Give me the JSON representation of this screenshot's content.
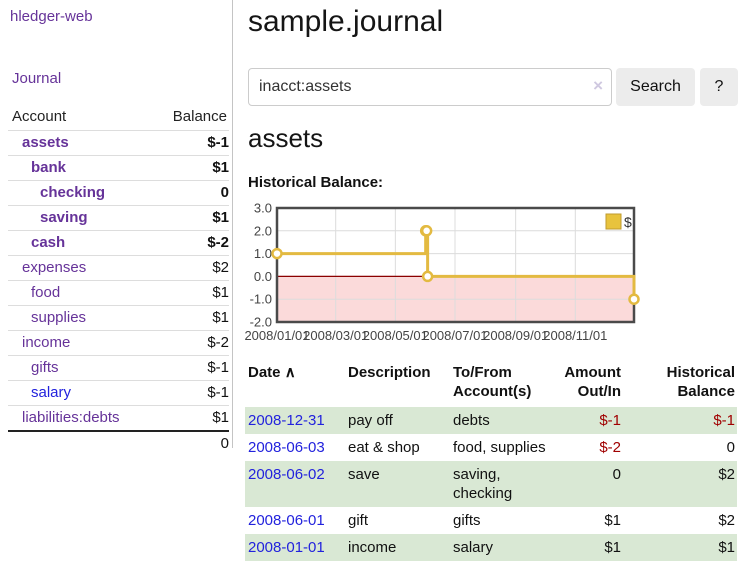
{
  "sidebar": {
    "app_title": "hledger-web",
    "nav": {
      "journal_label": "Journal"
    },
    "accounts_table": {
      "headers": {
        "account": "Account",
        "balance": "Balance"
      },
      "rows": [
        {
          "name": "assets",
          "indent": 1,
          "bold": true,
          "link_color": "purple",
          "balance": "$-1",
          "balance_color": "negative"
        },
        {
          "name": "bank",
          "indent": 2,
          "bold": true,
          "link_color": "purple",
          "balance": "$1",
          "balance_color": "normal"
        },
        {
          "name": "checking",
          "indent": 3,
          "bold": true,
          "link_color": "purple",
          "balance": "0",
          "balance_color": "normal"
        },
        {
          "name": "saving",
          "indent": 3,
          "bold": true,
          "link_color": "purple",
          "balance": "$1",
          "balance_color": "normal"
        },
        {
          "name": "cash",
          "indent": 2,
          "bold": true,
          "link_color": "purple",
          "balance": "$-2",
          "balance_color": "negative"
        },
        {
          "name": "expenses",
          "indent": 1,
          "bold": false,
          "link_color": "purple",
          "balance": "$2",
          "balance_color": "normal"
        },
        {
          "name": "food",
          "indent": 2,
          "bold": false,
          "link_color": "purple",
          "balance": "$1",
          "balance_color": "normal"
        },
        {
          "name": "supplies",
          "indent": 2,
          "bold": false,
          "link_color": "purple",
          "balance": "$1",
          "balance_color": "normal"
        },
        {
          "name": "income",
          "indent": 1,
          "bold": false,
          "link_color": "purple",
          "balance": "$-2",
          "balance_color": "negative-light"
        },
        {
          "name": "gifts",
          "indent": 2,
          "bold": false,
          "link_color": "purple",
          "balance": "$-1",
          "balance_color": "negative-light"
        },
        {
          "name": "salary",
          "indent": 2,
          "bold": false,
          "link_color": "blue",
          "balance": "$-1",
          "balance_color": "negative-light"
        },
        {
          "name": "liabilities:debts",
          "indent": 1,
          "bold": false,
          "link_color": "purple",
          "balance": "$1",
          "balance_color": "normal"
        }
      ],
      "total": "0"
    }
  },
  "main": {
    "title": "sample.journal",
    "search": {
      "value": "inacct:assets",
      "clear_icon": "×",
      "button_label": "Search",
      "help_label": "?"
    },
    "account_heading": "assets",
    "chart_heading": "Historical Balance:",
    "register": {
      "headers": [
        "Date",
        "Description",
        "To/From Account(s)",
        "Amount Out/In",
        "Historical Balance"
      ],
      "sort_indicator": "∧",
      "rows": [
        {
          "date": "2008-12-31",
          "description": "pay off",
          "accounts": "debts",
          "amount": "$-1",
          "amount_color": "negative",
          "balance": "$-1",
          "balance_color": "negative",
          "shaded": true
        },
        {
          "date": "2008-06-03",
          "description": "eat & shop",
          "accounts": "food, supplies",
          "amount": "$-2",
          "amount_color": "negative",
          "balance": "0",
          "balance_color": "normal",
          "shaded": false
        },
        {
          "date": "2008-06-02",
          "description": "save",
          "accounts": "saving, checking",
          "amount": "0",
          "amount_color": "normal",
          "balance": "$2",
          "balance_color": "normal",
          "shaded": true
        },
        {
          "date": "2008-06-01",
          "description": "gift",
          "accounts": "gifts",
          "amount": "$1",
          "amount_color": "normal",
          "balance": "$2",
          "balance_color": "normal",
          "shaded": false
        },
        {
          "date": "2008-01-01",
          "description": "income",
          "accounts": "salary",
          "amount": "$1",
          "amount_color": "normal",
          "balance": "$1",
          "balance_color": "normal",
          "shaded": true
        }
      ]
    }
  },
  "chart_data": {
    "type": "line",
    "title": "Historical Balance",
    "step": true,
    "grid": true,
    "legend_position": "top-right",
    "legend": [
      {
        "label": "$",
        "color": "#e8c33d"
      }
    ],
    "ylim": [
      -2,
      3
    ],
    "y_ticks": [
      {
        "value": 3,
        "label": "3.0"
      },
      {
        "value": 2,
        "label": "2.0"
      },
      {
        "value": 1,
        "label": "1.0"
      },
      {
        "value": 0,
        "label": "0.0"
      },
      {
        "value": -1,
        "label": "-1.0"
      },
      {
        "value": -2,
        "label": "-2.0"
      }
    ],
    "x_range": [
      "2008-01-01",
      "2008-12-31"
    ],
    "x_ticks": [
      {
        "date": "2008-01-01",
        "label": "2008/01/01"
      },
      {
        "date": "2008-03-01",
        "label": "2008/03/01"
      },
      {
        "date": "2008-05-01",
        "label": "2008/05/01"
      },
      {
        "date": "2008-07-01",
        "label": "2008/07/01"
      },
      {
        "date": "2008-09-01",
        "label": "2008/09/01"
      },
      {
        "date": "2008-11-01",
        "label": "2008/11/01"
      }
    ],
    "series": [
      {
        "name": "$",
        "color": "#e3ba41",
        "points": [
          {
            "date": "2008-01-01",
            "value": 1
          },
          {
            "date": "2008-06-01",
            "value": 2
          },
          {
            "date": "2008-06-02",
            "value": 2
          },
          {
            "date": "2008-06-03",
            "value": 0
          },
          {
            "date": "2008-12-31",
            "value": -1
          }
        ]
      }
    ],
    "colors": {
      "negative_region": "#fbdada",
      "zero_line": "#8b0000",
      "gridline": "#dcdcdc",
      "plot_border": "#4a4a4a",
      "tick_text": "#444444"
    }
  }
}
